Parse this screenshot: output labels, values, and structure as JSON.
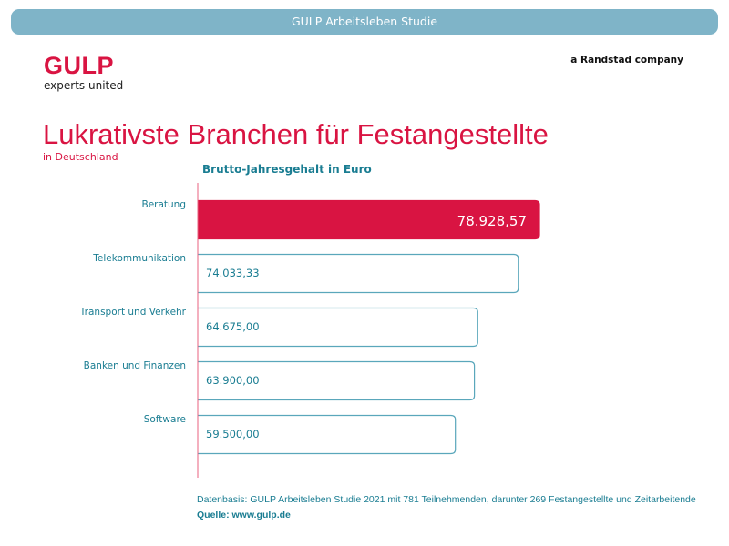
{
  "banner": {
    "title": "GULP Arbeitsleben Studie"
  },
  "logo": {
    "brand": "GULP",
    "slogan": "experts united"
  },
  "header": {
    "company_note": "a Randstad company"
  },
  "colors": {
    "accent": "#d91442",
    "teal": "#1a7d92",
    "banner": "#7fb4c8",
    "bar_border": "#5aa7bb"
  },
  "chart_data": {
    "type": "bar",
    "orientation": "horizontal",
    "title": "Lukrativste Branchen für Festangestellte",
    "subtitle": "in Deutschland",
    "xlabel": "Brutto-Jahresgehalt in Euro",
    "categories": [
      "Beratung",
      "Telekommunikation",
      "Transport und Verkehr",
      "Banken und Finanzen",
      "Software"
    ],
    "values": [
      78928.57,
      74033.33,
      64675.0,
      63900.0,
      59500.0
    ],
    "value_labels": [
      "78.928,57",
      "74.033,33",
      "64.675,00",
      "63.900,00",
      "59.500,00"
    ],
    "highlight_index": 0,
    "grid": false
  },
  "footer": {
    "note": "Datenbasis: GULP Arbeitsleben Studie 2021 mit 781 Teilnehmenden, darunter 269 Festangestellte und Zeitarbeitende",
    "source": "Quelle: www.gulp.de"
  }
}
